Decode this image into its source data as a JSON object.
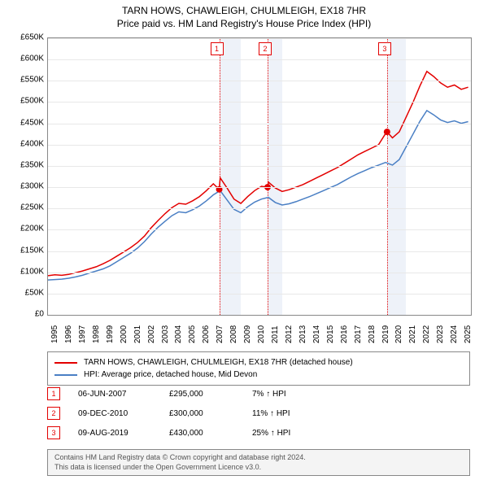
{
  "title": {
    "line1": "TARN HOWS, CHAWLEIGH, CHULMLEIGH, EX18 7HR",
    "line2": "Price paid vs. HM Land Registry's House Price Index (HPI)"
  },
  "chart": {
    "type": "line",
    "background_color": "#ffffff",
    "grid_color": "#e8e8e8",
    "border_color": "#888888",
    "shaded_band_color": "#eef2f9",
    "marker_line_color": "#e30000",
    "marker_line_style": "dotted",
    "x_axis": {
      "min": 1995,
      "max": 2025.7,
      "ticks": [
        1995,
        1996,
        1997,
        1998,
        1999,
        2000,
        2001,
        2002,
        2003,
        2004,
        2005,
        2006,
        2007,
        2008,
        2009,
        2010,
        2011,
        2012,
        2013,
        2014,
        2015,
        2016,
        2017,
        2018,
        2019,
        2020,
        2021,
        2022,
        2023,
        2024,
        2025
      ],
      "label_fontsize": 10,
      "label_rotation": -90
    },
    "y_axis": {
      "min": 0,
      "max": 650000,
      "tick_step": 50000,
      "tick_labels": [
        "£0",
        "£50K",
        "£100K",
        "£150K",
        "£200K",
        "£250K",
        "£300K",
        "£350K",
        "£400K",
        "£450K",
        "£500K",
        "£550K",
        "£600K",
        "£650K"
      ],
      "label_fontsize": 10
    },
    "shaded_bands": [
      {
        "x_start": 2007.43,
        "x_end": 2009.0
      },
      {
        "x_start": 2010.94,
        "x_end": 2012.0
      },
      {
        "x_start": 2019.61,
        "x_end": 2021.0
      }
    ],
    "markers": [
      {
        "id": "1",
        "x": 2007.43,
        "y": 295000,
        "box_x_offset": -10
      },
      {
        "id": "2",
        "x": 2010.94,
        "y": 300000,
        "box_x_offset": -10
      },
      {
        "id": "3",
        "x": 2019.61,
        "y": 430000,
        "box_x_offset": -10
      }
    ],
    "series": [
      {
        "name": "property",
        "label": "TARN HOWS, CHAWLEIGH, CHULMLEIGH, EX18 7HR (detached house)",
        "color": "#e30000",
        "line_width": 1.5,
        "data": [
          [
            1995.0,
            92000
          ],
          [
            1995.5,
            94000
          ],
          [
            1996.0,
            93000
          ],
          [
            1996.5,
            95000
          ],
          [
            1997.0,
            99000
          ],
          [
            1997.5,
            103000
          ],
          [
            1998.0,
            108000
          ],
          [
            1998.5,
            113000
          ],
          [
            1999.0,
            120000
          ],
          [
            1999.5,
            128000
          ],
          [
            2000.0,
            138000
          ],
          [
            2000.5,
            148000
          ],
          [
            2001.0,
            158000
          ],
          [
            2001.5,
            170000
          ],
          [
            2002.0,
            185000
          ],
          [
            2002.5,
            205000
          ],
          [
            2003.0,
            222000
          ],
          [
            2003.5,
            238000
          ],
          [
            2004.0,
            252000
          ],
          [
            2004.5,
            262000
          ],
          [
            2005.0,
            260000
          ],
          [
            2005.5,
            268000
          ],
          [
            2006.0,
            278000
          ],
          [
            2006.5,
            292000
          ],
          [
            2007.0,
            308000
          ],
          [
            2007.43,
            295000
          ],
          [
            2007.5,
            322000
          ],
          [
            2008.0,
            298000
          ],
          [
            2008.5,
            272000
          ],
          [
            2009.0,
            262000
          ],
          [
            2009.5,
            278000
          ],
          [
            2010.0,
            292000
          ],
          [
            2010.5,
            302000
          ],
          [
            2010.94,
            300000
          ],
          [
            2011.0,
            312000
          ],
          [
            2011.5,
            298000
          ],
          [
            2012.0,
            290000
          ],
          [
            2012.5,
            294000
          ],
          [
            2013.0,
            300000
          ],
          [
            2013.5,
            306000
          ],
          [
            2014.0,
            314000
          ],
          [
            2014.5,
            322000
          ],
          [
            2015.0,
            330000
          ],
          [
            2015.5,
            338000
          ],
          [
            2016.0,
            346000
          ],
          [
            2016.5,
            356000
          ],
          [
            2017.0,
            366000
          ],
          [
            2017.5,
            376000
          ],
          [
            2018.0,
            384000
          ],
          [
            2018.5,
            392000
          ],
          [
            2019.0,
            400000
          ],
          [
            2019.5,
            426000
          ],
          [
            2019.61,
            430000
          ],
          [
            2020.0,
            416000
          ],
          [
            2020.5,
            430000
          ],
          [
            2021.0,
            465000
          ],
          [
            2021.5,
            500000
          ],
          [
            2022.0,
            538000
          ],
          [
            2022.5,
            572000
          ],
          [
            2023.0,
            560000
          ],
          [
            2023.5,
            545000
          ],
          [
            2024.0,
            535000
          ],
          [
            2024.5,
            540000
          ],
          [
            2025.0,
            530000
          ],
          [
            2025.5,
            535000
          ]
        ]
      },
      {
        "name": "hpi",
        "label": "HPI: Average price, detached house, Mid Devon",
        "color": "#4a7fc4",
        "line_width": 1.5,
        "data": [
          [
            1995.0,
            82000
          ],
          [
            1995.5,
            83000
          ],
          [
            1996.0,
            84000
          ],
          [
            1996.5,
            86000
          ],
          [
            1997.0,
            89000
          ],
          [
            1997.5,
            93000
          ],
          [
            1998.0,
            98000
          ],
          [
            1998.5,
            103000
          ],
          [
            1999.0,
            108000
          ],
          [
            1999.5,
            115000
          ],
          [
            2000.0,
            125000
          ],
          [
            2000.5,
            135000
          ],
          [
            2001.0,
            145000
          ],
          [
            2001.5,
            157000
          ],
          [
            2002.0,
            172000
          ],
          [
            2002.5,
            190000
          ],
          [
            2003.0,
            206000
          ],
          [
            2003.5,
            220000
          ],
          [
            2004.0,
            233000
          ],
          [
            2004.5,
            242000
          ],
          [
            2005.0,
            240000
          ],
          [
            2005.5,
            247000
          ],
          [
            2006.0,
            256000
          ],
          [
            2006.5,
            268000
          ],
          [
            2007.0,
            282000
          ],
          [
            2007.5,
            292000
          ],
          [
            2008.0,
            270000
          ],
          [
            2008.5,
            248000
          ],
          [
            2009.0,
            240000
          ],
          [
            2009.5,
            254000
          ],
          [
            2010.0,
            265000
          ],
          [
            2010.5,
            272000
          ],
          [
            2011.0,
            276000
          ],
          [
            2011.5,
            264000
          ],
          [
            2012.0,
            258000
          ],
          [
            2012.5,
            261000
          ],
          [
            2013.0,
            266000
          ],
          [
            2013.5,
            272000
          ],
          [
            2014.0,
            278000
          ],
          [
            2014.5,
            285000
          ],
          [
            2015.0,
            292000
          ],
          [
            2015.5,
            299000
          ],
          [
            2016.0,
            306000
          ],
          [
            2016.5,
            315000
          ],
          [
            2017.0,
            324000
          ],
          [
            2017.5,
            332000
          ],
          [
            2018.0,
            339000
          ],
          [
            2018.5,
            346000
          ],
          [
            2019.0,
            352000
          ],
          [
            2019.5,
            358000
          ],
          [
            2020.0,
            352000
          ],
          [
            2020.5,
            365000
          ],
          [
            2021.0,
            395000
          ],
          [
            2021.5,
            425000
          ],
          [
            2022.0,
            455000
          ],
          [
            2022.5,
            480000
          ],
          [
            2023.0,
            470000
          ],
          [
            2023.5,
            458000
          ],
          [
            2024.0,
            452000
          ],
          [
            2024.5,
            456000
          ],
          [
            2025.0,
            450000
          ],
          [
            2025.5,
            454000
          ]
        ]
      }
    ]
  },
  "legend": {
    "items": [
      {
        "color": "#e30000",
        "text": "TARN HOWS, CHAWLEIGH, CHULMLEIGH, EX18 7HR (detached house)"
      },
      {
        "color": "#4a7fc4",
        "text": "HPI: Average price, detached house, Mid Devon"
      }
    ]
  },
  "events": [
    {
      "id": "1",
      "date": "06-JUN-2007",
      "price": "£295,000",
      "diff": "7% ↑ HPI"
    },
    {
      "id": "2",
      "date": "09-DEC-2010",
      "price": "£300,000",
      "diff": "11% ↑ HPI"
    },
    {
      "id": "3",
      "date": "09-AUG-2019",
      "price": "£430,000",
      "diff": "25% ↑ HPI"
    }
  ],
  "footer": {
    "line1": "Contains HM Land Registry data © Crown copyright and database right 2024.",
    "line2": "This data is licensed under the Open Government Licence v3.0."
  }
}
